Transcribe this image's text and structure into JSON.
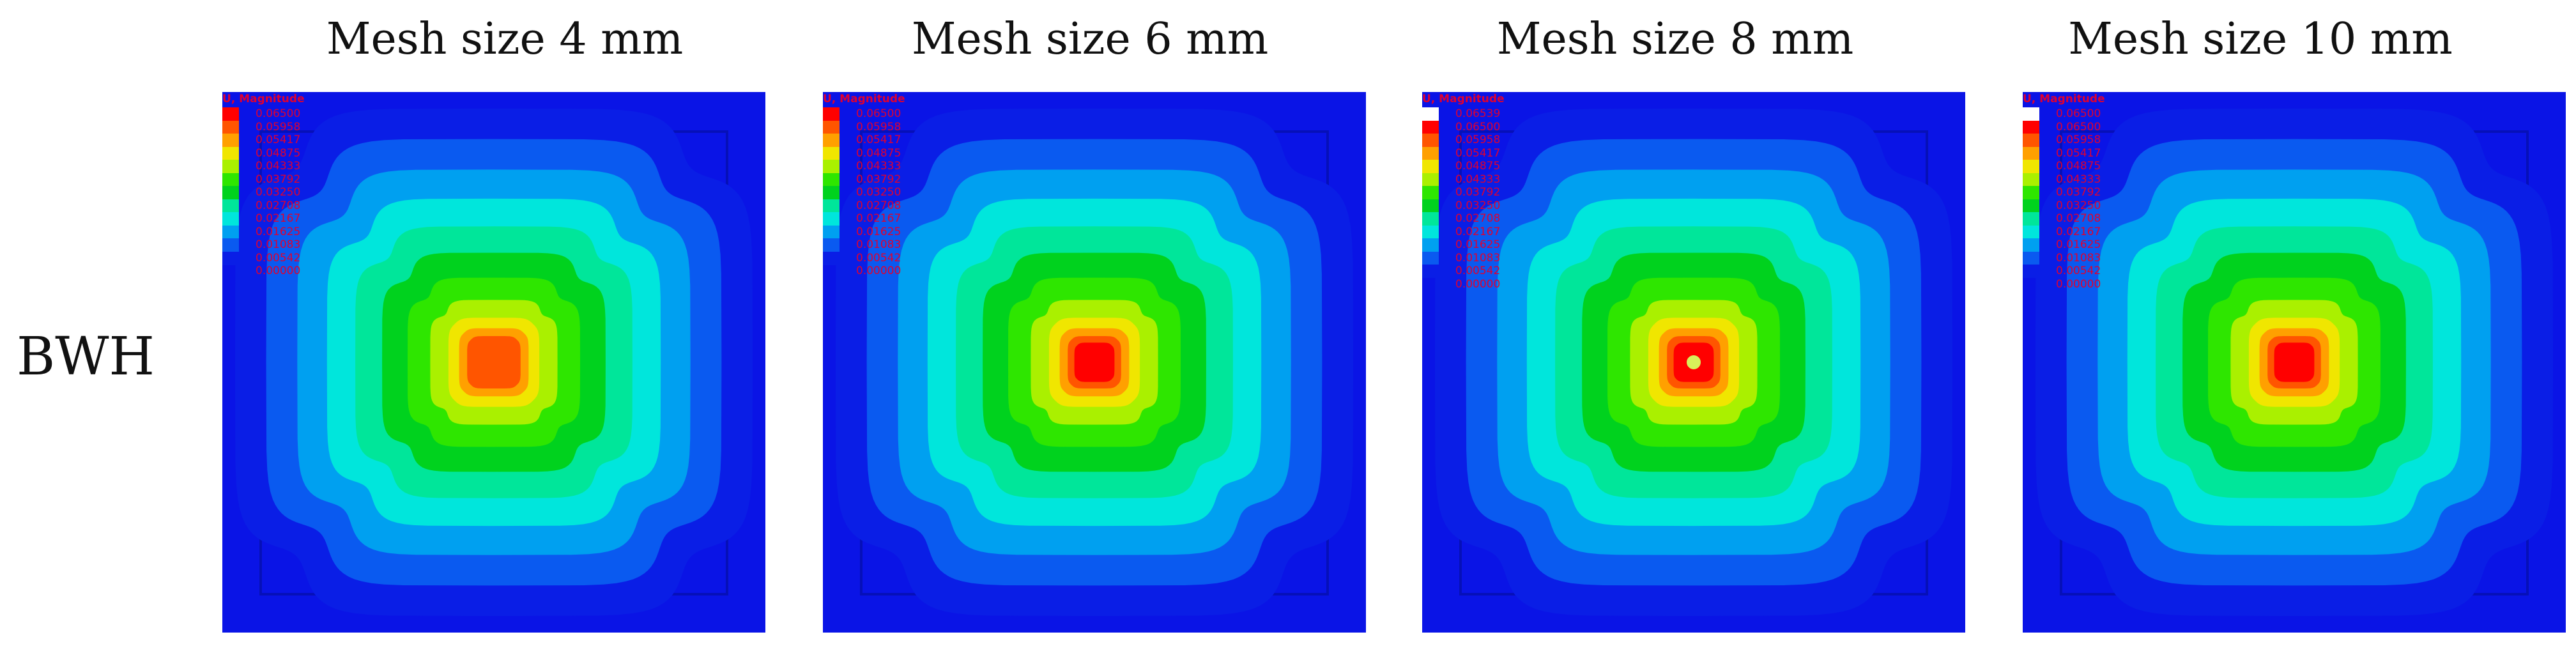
{
  "row_label": "BWH",
  "colors": {
    "panel_background": "#0a14e6",
    "band_colors": [
      "#0a1ee6",
      "#0a5af0",
      "#00a0f0",
      "#00e6dc",
      "#00e69a",
      "#00d21e",
      "#2ee600",
      "#aaf000",
      "#f0e600",
      "#ffa000",
      "#ff5500",
      "#ff0000"
    ]
  },
  "panels": [
    {
      "title": "Mesh size 4 mm",
      "legend": {
        "title": "U, Magnitude",
        "values": [
          "0.06500",
          "0.05958",
          "0.05417",
          "0.04875",
          "0.04333",
          "0.03792",
          "0.03250",
          "0.02708",
          "0.02167",
          "0.01625",
          "0.01083",
          "0.00542",
          "0.00000"
        ],
        "swatches": [
          "#ff0000",
          "#ff5500",
          "#ffa000",
          "#f0e600",
          "#aaf000",
          "#2ee600",
          "#00d21e",
          "#00e69a",
          "#00e6dc",
          "#00a0f0",
          "#0a5af0",
          "#0a1ee6"
        ]
      }
    },
    {
      "title": "Mesh size 6 mm",
      "legend": {
        "title": "U, Magnitude",
        "values": [
          "0.06500",
          "0.05958",
          "0.05417",
          "0.04875",
          "0.04333",
          "0.03792",
          "0.03250",
          "0.02708",
          "0.02167",
          "0.01625",
          "0.01083",
          "0.00542",
          "0.00000"
        ],
        "swatches": [
          "#ff0000",
          "#ff5500",
          "#ffa000",
          "#f0e600",
          "#aaf000",
          "#2ee600",
          "#00d21e",
          "#00e69a",
          "#00e6dc",
          "#00a0f0",
          "#0a5af0",
          "#0a1ee6"
        ]
      }
    },
    {
      "title": "Mesh size 8 mm",
      "legend": {
        "title": "U, Magnitude",
        "values": [
          "0.06539",
          "0.06500",
          "0.05958",
          "0.05417",
          "0.04875",
          "0.04333",
          "0.03792",
          "0.03250",
          "0.02708",
          "0.02167",
          "0.01625",
          "0.01083",
          "0.00542",
          "0.00000"
        ],
        "swatches": [
          "#ffffff",
          "#ff0000",
          "#ff5500",
          "#ffa000",
          "#f0e600",
          "#aaf000",
          "#2ee600",
          "#00d21e",
          "#00e69a",
          "#00e6dc",
          "#00a0f0",
          "#0a5af0",
          "#0a1ee6"
        ]
      }
    },
    {
      "title": "Mesh size 10 mm",
      "legend": {
        "title": "U, Magnitude",
        "values": [
          "0.06500",
          "0.06500",
          "0.05958",
          "0.05417",
          "0.04875",
          "0.04333",
          "0.03792",
          "0.03250",
          "0.02708",
          "0.02167",
          "0.01625",
          "0.01083",
          "0.00542",
          "0.00000"
        ],
        "swatches": [
          "#ffffff",
          "#ff0000",
          "#ff5500",
          "#ffa000",
          "#f0e600",
          "#aaf000",
          "#2ee600",
          "#00d21e",
          "#00e69a",
          "#00e6dc",
          "#00a0f0",
          "#0a5af0",
          "#0a1ee6"
        ]
      }
    }
  ]
}
